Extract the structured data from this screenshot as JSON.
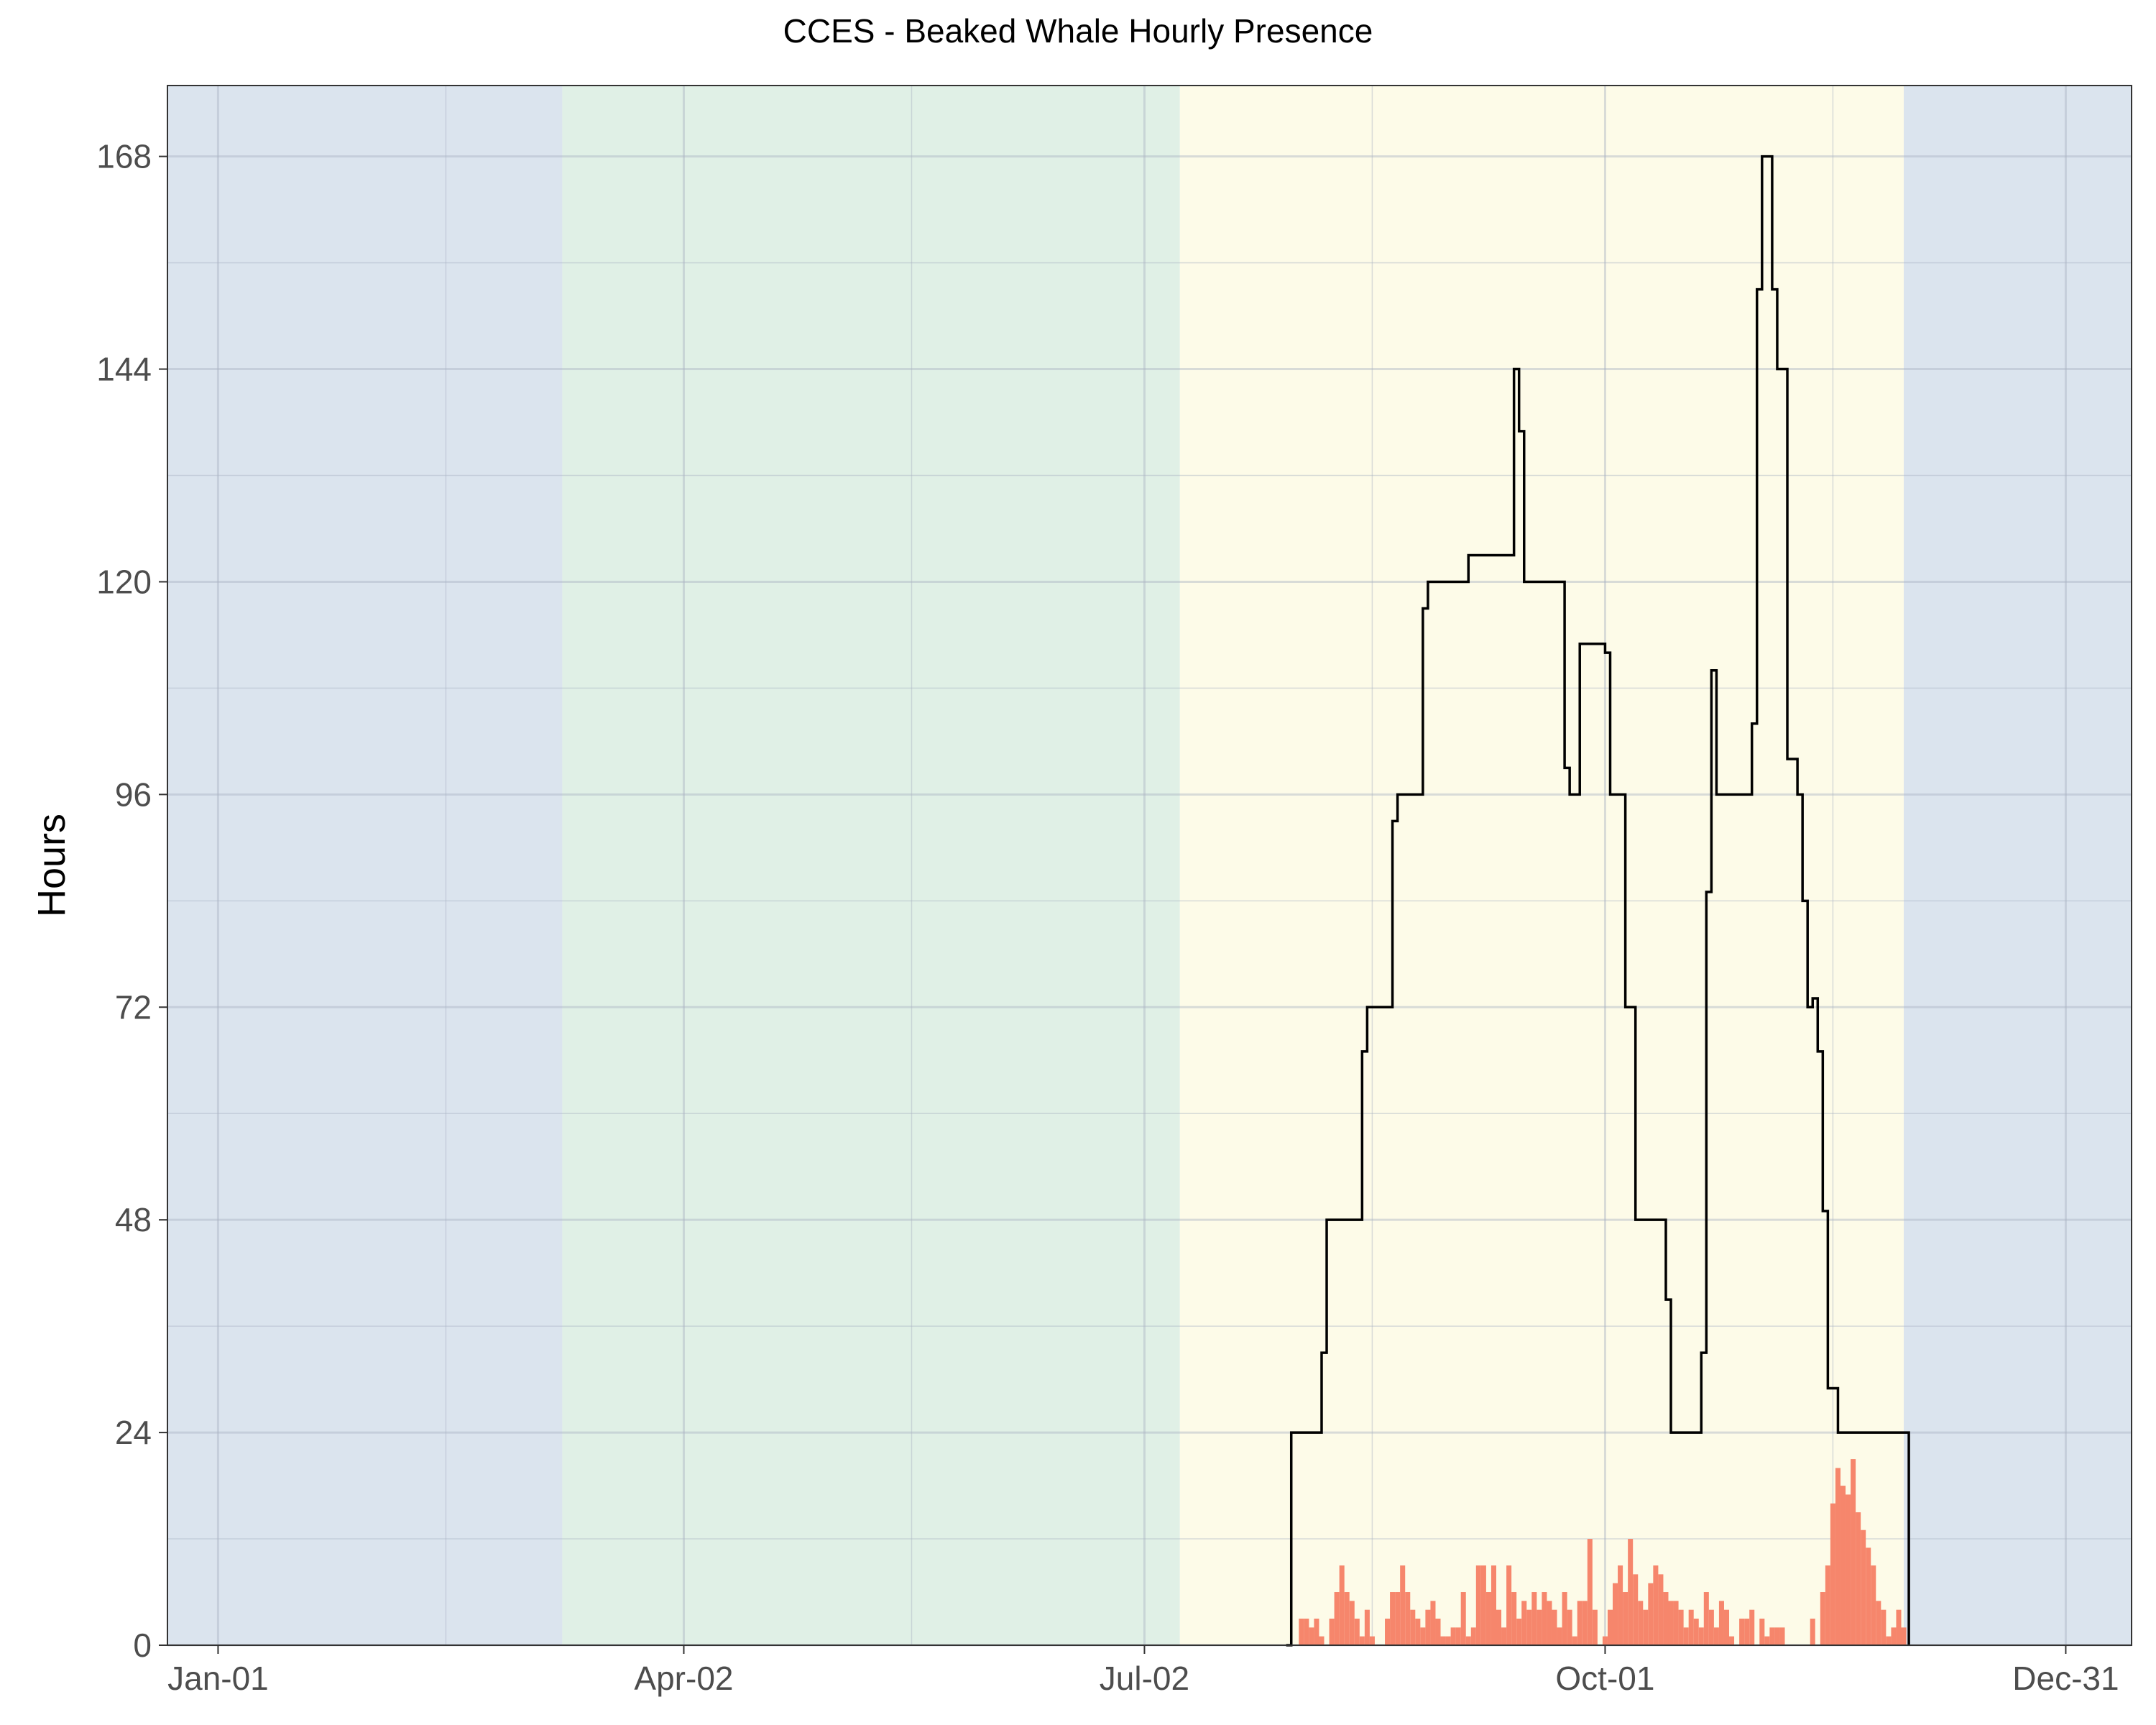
{
  "chart_data": {
    "type": "bar",
    "title": "CCES - Beaked Whale Hourly Presence",
    "xlabel": "",
    "ylabel": "Hours",
    "ylim": [
      0,
      176
    ],
    "yticks": [
      0,
      24,
      48,
      72,
      96,
      120,
      144,
      168
    ],
    "x_axis": {
      "type": "date",
      "range": [
        "2019-12-22",
        "2021-01-13"
      ],
      "ticks": [
        {
          "date": "2020-01-01",
          "label": "Jan-01"
        },
        {
          "date": "2020-04-02",
          "label": "Apr-02"
        },
        {
          "date": "2020-07-02",
          "label": "Jul-02"
        },
        {
          "date": "2020-10-01",
          "label": "Oct-01"
        },
        {
          "date": "2020-12-31",
          "label": "Dec-31"
        }
      ],
      "minor_ticks": [
        "2020-02-15",
        "2020-05-17",
        "2020-08-16",
        "2020-11-15"
      ]
    },
    "grid": true,
    "legend": "none",
    "season_bands": [
      {
        "start": "2019-12-22",
        "end": "2020-03-09",
        "color": "#dbe4ee"
      },
      {
        "start": "2020-03-09",
        "end": "2020-07-09",
        "color": "#e0f0e6"
      },
      {
        "start": "2020-07-09",
        "end": "2020-11-29",
        "color": "#fdfbe8"
      },
      {
        "start": "2020-11-29",
        "end": "2021-01-13",
        "color": "#dbe4ee"
      }
    ],
    "series": [
      {
        "type": "bar",
        "color": "#f6866c",
        "x": [
          "2020-08-02",
          "2020-08-03",
          "2020-08-04",
          "2020-08-05",
          "2020-08-06",
          "2020-08-07",
          "2020-08-08",
          "2020-08-09",
          "2020-08-10",
          "2020-08-11",
          "2020-08-12",
          "2020-08-13",
          "2020-08-14",
          "2020-08-15",
          "2020-08-16",
          "2020-08-17",
          "2020-08-18",
          "2020-08-19",
          "2020-08-20",
          "2020-08-21",
          "2020-08-22",
          "2020-08-23",
          "2020-08-24",
          "2020-08-25",
          "2020-08-26",
          "2020-08-27",
          "2020-08-28",
          "2020-08-29",
          "2020-08-30",
          "2020-08-31",
          "2020-09-01",
          "2020-09-02",
          "2020-09-03",
          "2020-09-04",
          "2020-09-05",
          "2020-09-06",
          "2020-09-07",
          "2020-09-08",
          "2020-09-09",
          "2020-09-10",
          "2020-09-11",
          "2020-09-12",
          "2020-09-13",
          "2020-09-14",
          "2020-09-15",
          "2020-09-16",
          "2020-09-17",
          "2020-09-18",
          "2020-09-19",
          "2020-09-20",
          "2020-09-21",
          "2020-09-22",
          "2020-09-23",
          "2020-09-24",
          "2020-09-25",
          "2020-09-26",
          "2020-09-27",
          "2020-09-28",
          "2020-09-29",
          "2020-09-30",
          "2020-10-01",
          "2020-10-02",
          "2020-10-03",
          "2020-10-04",
          "2020-10-05",
          "2020-10-06",
          "2020-10-07",
          "2020-10-08",
          "2020-10-09",
          "2020-10-10",
          "2020-10-11",
          "2020-10-12",
          "2020-10-13",
          "2020-10-14",
          "2020-10-15",
          "2020-10-16",
          "2020-10-17",
          "2020-10-18",
          "2020-10-19",
          "2020-10-20",
          "2020-10-21",
          "2020-10-22",
          "2020-10-23",
          "2020-10-24",
          "2020-10-25",
          "2020-10-26",
          "2020-10-27",
          "2020-10-28",
          "2020-10-29",
          "2020-10-30",
          "2020-10-31",
          "2020-11-01",
          "2020-11-02",
          "2020-11-03",
          "2020-11-04",
          "2020-11-05",
          "2020-11-06",
          "2020-11-07",
          "2020-11-08",
          "2020-11-09",
          "2020-11-10",
          "2020-11-11",
          "2020-11-12",
          "2020-11-13",
          "2020-11-14",
          "2020-11-15",
          "2020-11-16",
          "2020-11-17",
          "2020-11-18",
          "2020-11-19",
          "2020-11-20",
          "2020-11-21",
          "2020-11-22",
          "2020-11-23",
          "2020-11-24",
          "2020-11-25",
          "2020-11-26",
          "2020-11-27",
          "2020-11-28",
          "2020-11-29"
        ],
        "values": [
          3,
          3,
          2,
          3,
          1,
          0,
          3,
          6,
          9,
          6,
          5,
          3,
          1,
          4,
          1,
          0,
          0,
          3,
          6,
          6,
          9,
          6,
          4,
          3,
          2,
          4,
          5,
          3,
          1,
          1,
          2,
          2,
          6,
          1,
          2,
          9,
          9,
          6,
          9,
          4,
          2,
          9,
          6,
          3,
          5,
          4,
          6,
          4,
          6,
          5,
          4,
          2,
          6,
          4,
          1,
          5,
          5,
          12,
          4,
          0,
          1,
          4,
          7,
          9,
          6,
          12,
          8,
          5,
          4,
          7,
          9,
          8,
          6,
          5,
          5,
          4,
          2,
          4,
          3,
          2,
          6,
          4,
          2,
          5,
          4,
          1,
          0,
          3,
          3,
          4,
          0,
          3,
          1,
          2,
          2,
          2,
          0,
          0,
          0,
          0,
          0,
          3,
          0,
          6,
          9,
          16,
          20,
          18,
          17,
          21,
          15,
          13,
          11,
          9,
          5,
          4,
          1,
          2,
          4,
          2
        ]
      },
      {
        "type": "step",
        "color": "#000000",
        "x": [
          "2020-07-30",
          "2020-07-31",
          "2020-08-06",
          "2020-08-07",
          "2020-08-08",
          "2020-08-14",
          "2020-08-15",
          "2020-08-20",
          "2020-08-21",
          "2020-08-26",
          "2020-08-27",
          "2020-09-03",
          "2020-09-04",
          "2020-09-13",
          "2020-09-14",
          "2020-09-15",
          "2020-09-23",
          "2020-09-24",
          "2020-09-25",
          "2020-09-26",
          "2020-10-01",
          "2020-10-02",
          "2020-10-03",
          "2020-10-05",
          "2020-10-06",
          "2020-10-07",
          "2020-10-13",
          "2020-10-14",
          "2020-10-20",
          "2020-10-21",
          "2020-10-22",
          "2020-10-23",
          "2020-10-29",
          "2020-10-30",
          "2020-10-31",
          "2020-11-01",
          "2020-11-02",
          "2020-11-03",
          "2020-11-04",
          "2020-11-05",
          "2020-11-06",
          "2020-11-08",
          "2020-11-09",
          "2020-11-10",
          "2020-11-11",
          "2020-11-12",
          "2020-11-13",
          "2020-11-14",
          "2020-11-16",
          "2020-11-18",
          "2020-11-19",
          "2020-11-20",
          "2020-11-21",
          "2020-11-22",
          "2020-11-30"
        ],
        "values": [
          0,
          24,
          33,
          48,
          48,
          67,
          72,
          93,
          96,
          117,
          120,
          120,
          123,
          144,
          137,
          120,
          99,
          96,
          96,
          113,
          112,
          96,
          96,
          72,
          72,
          48,
          39,
          24,
          33,
          85,
          110,
          96,
          96,
          104,
          153,
          168,
          168,
          153,
          144,
          144,
          100,
          96,
          84,
          72,
          73,
          67,
          49,
          29,
          24,
          24,
          24,
          24,
          24,
          24,
          0
        ]
      }
    ]
  }
}
